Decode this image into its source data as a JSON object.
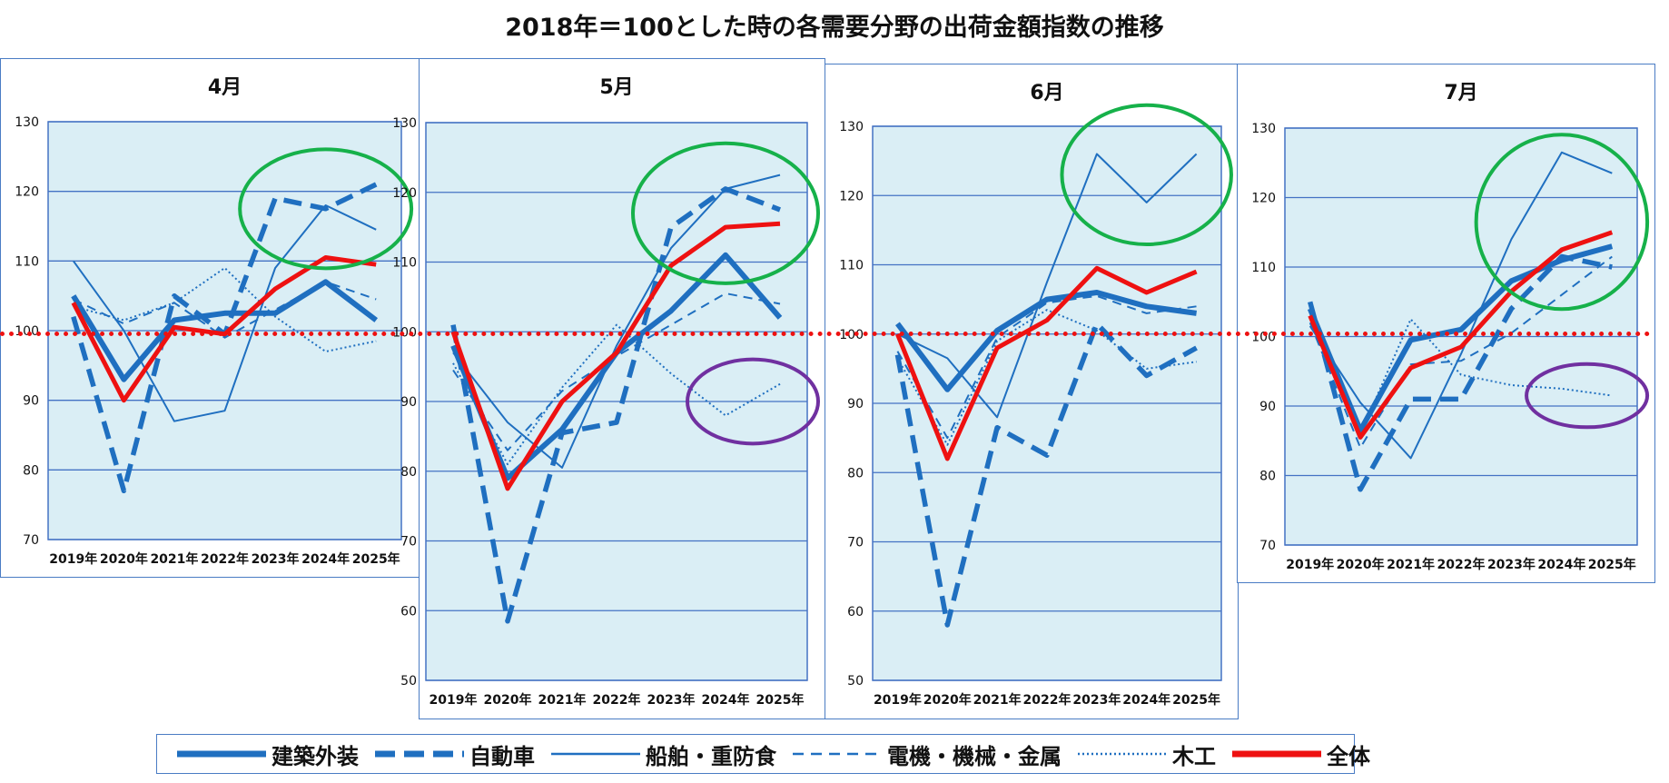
{
  "title": "2018年＝100とした時の各需要分野の出荷金額指数の推移",
  "colors": {
    "plot_bg": "#daeef5",
    "grid": "#4472c4",
    "series_blue": "#1f6fc0",
    "total_red": "#ee1111",
    "reference_line": "#ee1111",
    "highlight_green": "#16b14a",
    "highlight_purple": "#7030a0",
    "panel_border": "#4a7cc4"
  },
  "legend": [
    {
      "name": "建築外装",
      "style": "thick-solid",
      "color": "#1f6fc0"
    },
    {
      "name": "自動車",
      "style": "thick-dashed",
      "color": "#1f6fc0"
    },
    {
      "name": "船舶・重防食",
      "style": "thin-solid",
      "color": "#1f6fc0"
    },
    {
      "name": "電機・機械・金属",
      "style": "thin-dashed",
      "color": "#1f6fc0"
    },
    {
      "name": "木工",
      "style": "dotted",
      "color": "#1f6fc0"
    },
    {
      "name": "全体",
      "style": "thick-solid",
      "color": "#ee1111"
    }
  ],
  "chart_data": [
    {
      "type": "line",
      "title": "4月",
      "categories": [
        "2019年",
        "2020年",
        "2021年",
        "2022年",
        "2023年",
        "2024年",
        "2025年"
      ],
      "ylim": [
        70,
        130
      ],
      "yticks": [
        "70",
        "80",
        "90",
        "100",
        "110",
        "120",
        "130"
      ],
      "reference_value": 100,
      "series": [
        {
          "name": "建築外装",
          "values": [
            105,
            93,
            101.5,
            102.5,
            102.5,
            107,
            101.5
          ]
        },
        {
          "name": "自動車",
          "values": [
            102,
            77,
            105,
            99.5,
            119,
            117.5,
            121
          ]
        },
        {
          "name": "船舶・重防食",
          "values": [
            110,
            100,
            87,
            88.5,
            109,
            118,
            114.5
          ]
        },
        {
          "name": "電機・機械・金属",
          "values": [
            104.5,
            101,
            104,
            99,
            103,
            107,
            104.5
          ]
        },
        {
          "name": "木工",
          "values": [
            103.5,
            101.5,
            104,
            109,
            102,
            97,
            98.5
          ]
        },
        {
          "name": "全体",
          "values": [
            104,
            90,
            100.5,
            99.5,
            106,
            110.5,
            109.5
          ]
        }
      ],
      "highlights": [
        {
          "color": "green",
          "category_range": [
            "2023年",
            "2025年"
          ],
          "value_range": [
            110,
            125
          ]
        }
      ]
    },
    {
      "type": "line",
      "title": "5月",
      "categories": [
        "2019年",
        "2020年",
        "2021年",
        "2022年",
        "2023年",
        "2024年",
        "2025年"
      ],
      "ylim": [
        50,
        130
      ],
      "yticks": [
        "50",
        "60",
        "70",
        "80",
        "90",
        "100",
        "110",
        "120",
        "130"
      ],
      "reference_value": 100,
      "series": [
        {
          "name": "建築外装",
          "values": [
            98,
            79,
            86,
            97,
            103,
            111,
            102
          ]
        },
        {
          "name": "自動車",
          "values": [
            101,
            58.5,
            85.5,
            87,
            115,
            120.5,
            117.5
          ]
        },
        {
          "name": "船舶・重防食",
          "values": [
            97,
            87,
            80.5,
            98,
            112,
            120.5,
            122.5
          ]
        },
        {
          "name": "電機・機械・金属",
          "values": [
            94.5,
            83,
            91.5,
            96.5,
            101,
            105.5,
            104
          ]
        },
        {
          "name": "木工",
          "values": [
            95.5,
            81,
            92,
            101,
            94,
            88,
            92.5
          ]
        },
        {
          "name": "全体",
          "values": [
            100,
            77.5,
            90,
            97,
            109.5,
            115,
            115.5
          ]
        }
      ],
      "highlights": [
        {
          "color": "green",
          "category_range": [
            "2023年",
            "2025年"
          ],
          "value_range": [
            108,
            126
          ]
        },
        {
          "color": "purple",
          "category_range": [
            "2024年",
            "2025年"
          ],
          "value_range": [
            85,
            95
          ]
        }
      ]
    },
    {
      "type": "line",
      "title": "6月",
      "categories": [
        "2019年",
        "2020年",
        "2021年",
        "2022年",
        "2023年",
        "2024年",
        "2025年"
      ],
      "ylim": [
        50,
        130
      ],
      "yticks": [
        "50",
        "60",
        "70",
        "80",
        "90",
        "100",
        "110",
        "120",
        "130"
      ],
      "reference_value": 100,
      "series": [
        {
          "name": "建築外装",
          "values": [
            101.5,
            92,
            100.5,
            105,
            106,
            104,
            103
          ]
        },
        {
          "name": "自動車",
          "values": [
            97,
            58,
            86.5,
            82.5,
            101.5,
            94,
            98
          ]
        },
        {
          "name": "船舶・重防食",
          "values": [
            100,
            96.5,
            88,
            107.5,
            126,
            119,
            126
          ]
        },
        {
          "name": "電機・機械・金属",
          "values": [
            97.5,
            85,
            99.5,
            104.5,
            105.5,
            103,
            104
          ]
        },
        {
          "name": "木工",
          "values": [
            96.5,
            84,
            99,
            103.5,
            100.5,
            95,
            96
          ]
        },
        {
          "name": "全体",
          "values": [
            100,
            82,
            98,
            102,
            109.5,
            106,
            109
          ]
        }
      ],
      "highlights": [
        {
          "color": "green",
          "category_range": [
            "2023年",
            "2025年"
          ],
          "value_range": [
            114,
            132
          ]
        }
      ]
    },
    {
      "type": "line",
      "title": "7月",
      "categories": [
        "2019年",
        "2020年",
        "2021年",
        "2022年",
        "2023年",
        "2024年",
        "2025年"
      ],
      "ylim": [
        70,
        130
      ],
      "yticks": [
        "70",
        "80",
        "90",
        "100",
        "110",
        "120",
        "130"
      ],
      "reference_value": 100,
      "series": [
        {
          "name": "建築外装",
          "values": [
            104,
            86.5,
            99.5,
            101,
            108,
            111,
            113
          ]
        },
        {
          "name": "自動車",
          "values": [
            105,
            78,
            91,
            91,
            104,
            111.5,
            110
          ]
        },
        {
          "name": "船舶・重防食",
          "values": [
            101.5,
            90.5,
            82.5,
            97.5,
            114,
            126.5,
            123.5
          ]
        },
        {
          "name": "電機・機械・金属",
          "values": [
            102,
            84,
            96,
            96.5,
            100.5,
            106,
            111.5
          ]
        },
        {
          "name": "木工",
          "values": [
            103,
            86,
            102.5,
            94.5,
            93,
            92.5,
            91.5
          ]
        },
        {
          "name": "全体",
          "values": [
            103,
            85.5,
            95.5,
            98.5,
            106.5,
            112.5,
            115
          ]
        }
      ],
      "highlights": [
        {
          "color": "green",
          "category_range": [
            "2023年",
            "2025年"
          ],
          "value_range": [
            105,
            128
          ]
        },
        {
          "color": "purple",
          "category_range": [
            "2024年",
            "2025年"
          ],
          "value_range": [
            88,
            95
          ]
        }
      ]
    }
  ]
}
